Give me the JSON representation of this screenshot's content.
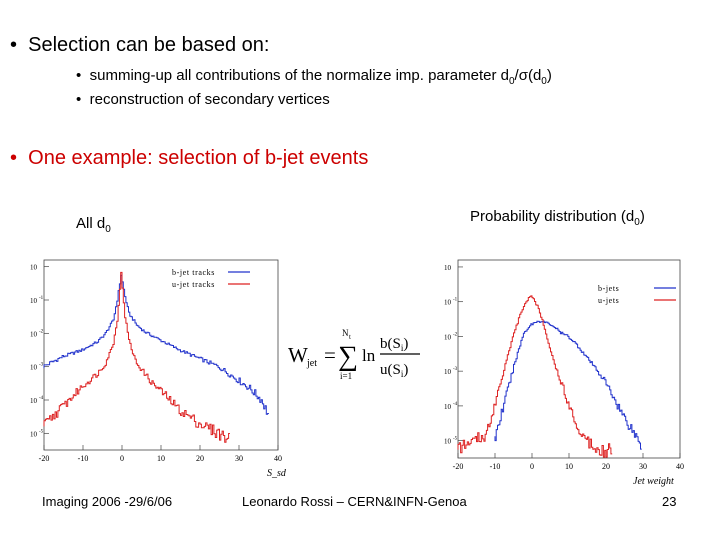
{
  "slide": {
    "bullet1": "Selection can be based on:",
    "sub1_pre": "summing-up all contributions of the normalize imp. parameter d",
    "sub1_sub1": "0",
    "sub1_mid": "/σ(d",
    "sub1_sub2": "0",
    "sub1_post": ")",
    "sub2": "reconstruction of secondary vertices",
    "bullet2": "One example: selection of b-jet events",
    "left_caption": "All d",
    "left_caption_sub": "0",
    "right_caption": "Probability distribution (d",
    "right_caption_sub": "0",
    "right_caption_post": ")"
  },
  "formula": {
    "lhs": "W",
    "lhs_sub": "jet",
    "sum_top": "N",
    "sum_top_sub": "t",
    "sum_bottom": "i=1",
    "ln": "ln",
    "num": "b(S",
    "num_sub": "i",
    "num_post": ")",
    "den": "u(S",
    "den_sub": "i",
    "den_post": ")"
  },
  "footer": {
    "left": "Imaging 2006 -29/6/06",
    "center": "Leonardo Rossi – CERN&INFN-Genoa",
    "page": "23"
  },
  "chart_data": [
    {
      "type": "line",
      "title": "All d0",
      "xlabel": "S_sd",
      "x_ticks": [
        "-20",
        "-10",
        "0",
        "10",
        "20",
        "30",
        "40"
      ],
      "y_ticks": [
        "10",
        "10",
        "10",
        "10",
        "10",
        "10"
      ],
      "y_exponents": [
        "",
        "-1",
        "-2",
        "-3",
        "-4",
        "-5"
      ],
      "xlim": [
        -20,
        40
      ],
      "ylim_log10": [
        -5.5,
        0.2
      ],
      "series": [
        {
          "name": "b-jet tracks",
          "color": "#2233cc",
          "x": [
            -20,
            -15,
            -10,
            -6,
            -4,
            -2,
            -1,
            0,
            1,
            2,
            4,
            6,
            10,
            15,
            20,
            25,
            30,
            33,
            36,
            38
          ],
          "log10_y": [
            -3.0,
            -2.7,
            -2.5,
            -2.25,
            -2.0,
            -1.6,
            -1.0,
            -0.25,
            -0.9,
            -1.4,
            -1.75,
            -1.95,
            -2.2,
            -2.5,
            -2.75,
            -3.0,
            -3.4,
            -3.65,
            -4.0,
            -4.5
          ]
        },
        {
          "name": "u-jet tracks",
          "color": "#dd2222",
          "x": [
            -20,
            -15,
            -10,
            -6,
            -4,
            -2,
            -1,
            0,
            1,
            2,
            3,
            4,
            6,
            8,
            10,
            15,
            20,
            25,
            28
          ],
          "log10_y": [
            -4.8,
            -4.2,
            -3.6,
            -3.2,
            -2.9,
            -2.3,
            -1.6,
            -0.2,
            -1.5,
            -2.2,
            -2.6,
            -2.9,
            -3.2,
            -3.5,
            -3.7,
            -4.3,
            -4.7,
            -5.0,
            -5.2
          ]
        }
      ]
    },
    {
      "type": "line",
      "title": "Probability distribution (d0)",
      "xlabel": "Jet weight",
      "x_ticks": [
        "-20",
        "-10",
        "0",
        "10",
        "20",
        "30",
        "40"
      ],
      "y_ticks": [
        "10",
        "10",
        "10",
        "10",
        "10",
        "10"
      ],
      "y_exponents": [
        "",
        "-1",
        "-2",
        "-3",
        "-4",
        "-5"
      ],
      "xlim": [
        -20,
        40
      ],
      "ylim_log10": [
        -5.5,
        0.2
      ],
      "series": [
        {
          "name": "b-jets",
          "color": "#2233cc",
          "x": [
            -10,
            -8,
            -6,
            -4,
            -2,
            0,
            2,
            4,
            6,
            8,
            10,
            12,
            15,
            18,
            20,
            22,
            25,
            28,
            30
          ],
          "log10_y": [
            -5.0,
            -4.2,
            -3.4,
            -2.6,
            -1.9,
            -1.65,
            -1.55,
            -1.6,
            -1.7,
            -1.9,
            -2.0,
            -2.2,
            -2.6,
            -3.0,
            -3.3,
            -3.7,
            -4.3,
            -4.8,
            -5.2
          ]
        },
        {
          "name": "u-jets",
          "color": "#dd2222",
          "x": [
            -20,
            -15,
            -12,
            -10,
            -8,
            -6,
            -4,
            -2,
            0,
            2,
            4,
            6,
            8,
            10,
            12,
            15,
            20,
            22
          ],
          "log10_y": [
            -5.2,
            -5.0,
            -4.8,
            -4.0,
            -3.2,
            -2.4,
            -1.7,
            -1.1,
            -0.8,
            -1.2,
            -1.9,
            -2.7,
            -3.3,
            -3.9,
            -4.5,
            -5.0,
            -5.3,
            -5.2
          ]
        }
      ]
    }
  ]
}
